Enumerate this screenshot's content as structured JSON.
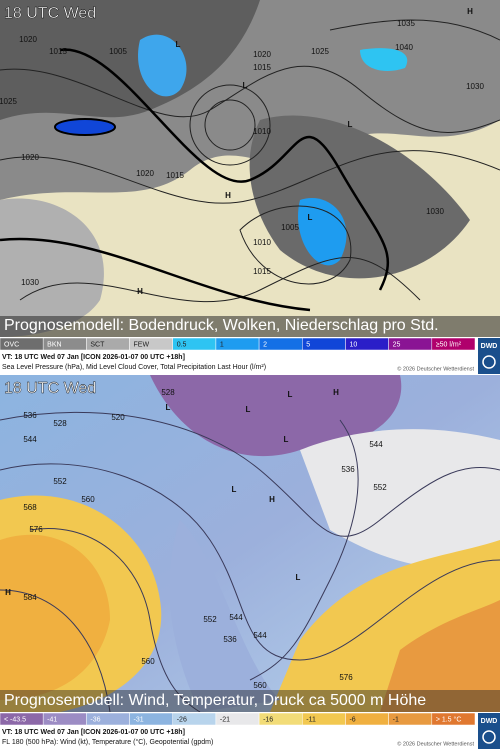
{
  "panels": [
    {
      "time_label": "18 UTC Wed",
      "caption": "Prognosemodell: Bodendruck, Wolken, Niederschlag pro Std.",
      "legend": [
        {
          "label": "OVC",
          "color": "#6e6e6e"
        },
        {
          "label": "BKN",
          "color": "#8c8c8c"
        },
        {
          "label": "SCT",
          "color": "#aaaaaa"
        },
        {
          "label": "FEW",
          "color": "#c8c8c8"
        },
        {
          "label": "0.5",
          "color": "#2ec4f2"
        },
        {
          "label": "1",
          "color": "#1e9cf0"
        },
        {
          "label": "2",
          "color": "#1470e6"
        },
        {
          "label": "5",
          "color": "#1046d8"
        },
        {
          "label": "10",
          "color": "#2a1ec8"
        },
        {
          "label": "25",
          "color": "#8a1494"
        },
        {
          "label": "≥50 l/m²",
          "color": "#b0006c"
        }
      ],
      "vt": "VT: 18 UTC Wed  07 Jan [ICON 2026-01-07 00 UTC +18h]",
      "description": "Sea Level Pressure (hPa), Mid Level Cloud Cover, Total Precipitation Last Hour (l/m²)",
      "copyright": "© 2026 Deutscher Wetterdienst",
      "logo": "DWD",
      "map_labels": [
        "1020",
        "1015",
        "1005",
        "1020",
        "1015",
        "1035",
        "1040",
        "1025",
        "1020",
        "1015",
        "1010",
        "1005",
        "1015",
        "1030",
        "1030",
        "1025",
        "1030",
        "1010",
        "1020",
        "L",
        "L",
        "H",
        "L",
        "H",
        "L",
        "H"
      ]
    },
    {
      "time_label": "18 UTC Wed",
      "caption": "Prognosemodell: Wind, Temperatur, Druck ca 5000 m Höhe",
      "legend": [
        {
          "label": "< -43.5",
          "color": "#8c68a8"
        },
        {
          "label": "-41",
          "color": "#9c8cc4"
        },
        {
          "label": "-36",
          "color": "#9cb0dc"
        },
        {
          "label": "-31",
          "color": "#8cb4e0"
        },
        {
          "label": "-26",
          "color": "#b8d4ec"
        },
        {
          "label": "-21",
          "color": "#e8e8ea"
        },
        {
          "label": "-16",
          "color": "#f2dc78"
        },
        {
          "label": "-11",
          "color": "#f2c850"
        },
        {
          "label": "-6",
          "color": "#f0b040"
        },
        {
          "label": "-1",
          "color": "#e89a40"
        },
        {
          "label": "> 1.5 °C",
          "color": "#e07830"
        }
      ],
      "vt": "VT: 18 UTC Wed  07 Jan [ICON 2026-01-07 00 UTC +18h]",
      "description": "FL 180 (500 hPa): Wind (kt), Temperature (°C), Geopotential (gpdm)",
      "copyright": "© 2026 Deutscher Wetterdienst",
      "logo": "DWD",
      "map_labels": [
        "520",
        "528",
        "536",
        "544",
        "552",
        "560",
        "568",
        "576",
        "584",
        "536",
        "544",
        "552",
        "560",
        "544",
        "552",
        "536",
        "544",
        "560",
        "576",
        "528",
        "L",
        "L",
        "L",
        "H",
        "L",
        "H",
        "L",
        "L",
        "H"
      ]
    }
  ]
}
